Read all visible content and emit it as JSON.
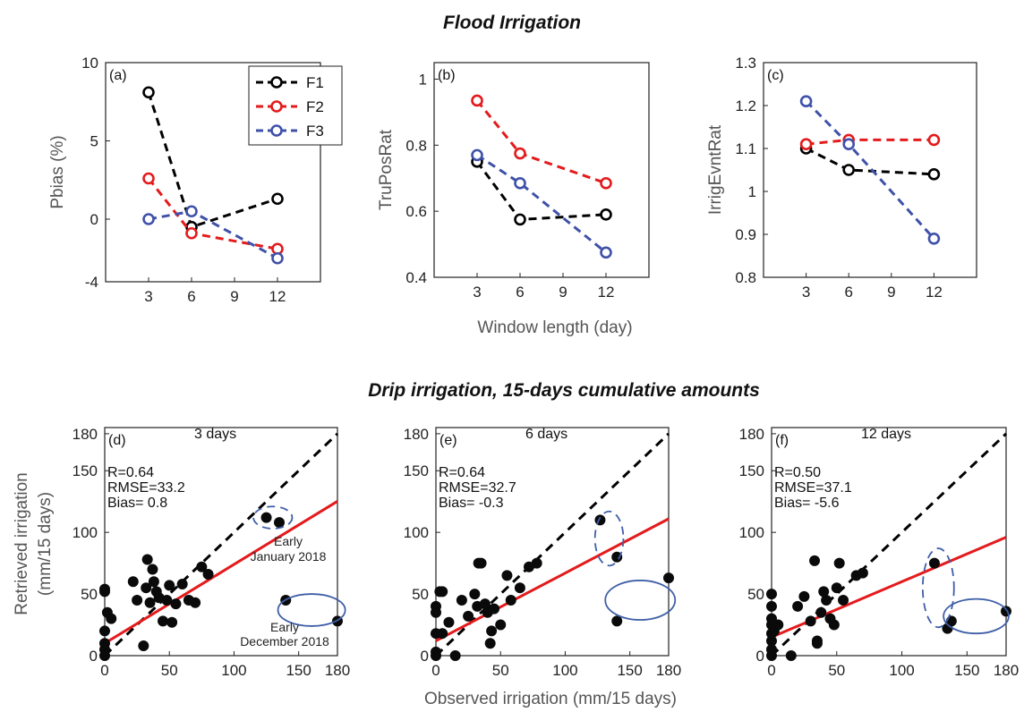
{
  "titles": {
    "top": "Flood Irrigation",
    "bottom": "Drip irrigation, 15-days cumulative amounts"
  },
  "shared_labels": {
    "top_xlabel": "Window length (day)",
    "bottom_xlabel": "Observed irrigation (mm/15 days)",
    "bottom_ylabel_line1": "Retrieved irrigation",
    "bottom_ylabel_line2": "(mm/15 days)"
  },
  "legend": {
    "entries": [
      {
        "name": "F1",
        "color": "#000000"
      },
      {
        "name": "F2",
        "color": "#e41a1c"
      },
      {
        "name": "F3",
        "color": "#3f51a8"
      }
    ]
  },
  "annotations": {
    "d_january_line1": "Early",
    "d_january_line2": "January 2018",
    "d_december_line1": "Early",
    "d_december_line2": "December 2018"
  },
  "chart_data": [
    {
      "type": "line",
      "panel_label": "(a)",
      "ylabel": "Pbias (%)",
      "x": [
        3,
        6,
        12
      ],
      "xticks": [
        3,
        6,
        9,
        12
      ],
      "xlim": [
        0,
        15
      ],
      "ylim": [
        -4,
        10
      ],
      "yticks": [
        -4,
        0,
        5,
        10
      ],
      "series": [
        {
          "name": "F1",
          "values": [
            8.1,
            -0.5,
            1.3
          ]
        },
        {
          "name": "F2",
          "values": [
            2.6,
            -0.9,
            -1.9
          ]
        },
        {
          "name": "F3",
          "values": [
            0.0,
            0.5,
            -2.5
          ]
        }
      ]
    },
    {
      "type": "line",
      "panel_label": "(b)",
      "ylabel": "TruPosRat",
      "x": [
        3,
        6,
        12
      ],
      "xticks": [
        3,
        6,
        9,
        12
      ],
      "xlim": [
        0,
        15
      ],
      "ylim": [
        0.4,
        1.05
      ],
      "yticks": [
        0.4,
        0.6,
        0.8,
        1.0
      ],
      "ytick_labels": [
        "0.4",
        "0.6",
        "0.8",
        "1"
      ],
      "series": [
        {
          "name": "F1",
          "values": [
            0.75,
            0.575,
            0.59
          ]
        },
        {
          "name": "F2",
          "values": [
            0.935,
            0.775,
            0.685
          ]
        },
        {
          "name": "F3",
          "values": [
            0.77,
            0.685,
            0.475
          ]
        }
      ]
    },
    {
      "type": "line",
      "panel_label": "(c)",
      "ylabel": "IrrigEvntRat",
      "x": [
        3,
        6,
        12
      ],
      "xticks": [
        3,
        6,
        9,
        12
      ],
      "xlim": [
        0,
        15
      ],
      "ylim": [
        0.8,
        1.3
      ],
      "yticks": [
        0.8,
        0.9,
        1.0,
        1.1,
        1.2,
        1.3
      ],
      "ytick_labels": [
        "0.8",
        "0.9",
        "1",
        "1.1",
        "1.2",
        "1.3"
      ],
      "series": [
        {
          "name": "F1",
          "values": [
            1.1,
            1.05,
            1.04
          ]
        },
        {
          "name": "F2",
          "values": [
            1.11,
            1.12,
            1.12
          ]
        },
        {
          "name": "F3",
          "values": [
            1.21,
            1.11,
            0.89
          ]
        }
      ]
    },
    {
      "type": "scatter",
      "panel_label": "(d)",
      "subtitle": "3 days",
      "stats": [
        "R=0.64",
        "RMSE=33.2",
        "Bias= 0.8"
      ],
      "xlim": [
        0,
        180
      ],
      "ylim": [
        0,
        185
      ],
      "xticks": [
        0,
        50,
        100,
        150,
        180
      ],
      "yticks": [
        0,
        50,
        100,
        150,
        180
      ],
      "fit": {
        "intercept": 10,
        "slope": 0.64
      },
      "points": [
        [
          0,
          0
        ],
        [
          0,
          5
        ],
        [
          0,
          10
        ],
        [
          0,
          20
        ],
        [
          0,
          52
        ],
        [
          0,
          54
        ],
        [
          2,
          35
        ],
        [
          5,
          30
        ],
        [
          22,
          60
        ],
        [
          25,
          45
        ],
        [
          30,
          8
        ],
        [
          32,
          55
        ],
        [
          33,
          78
        ],
        [
          35,
          43
        ],
        [
          37,
          70
        ],
        [
          38,
          60
        ],
        [
          40,
          52
        ],
        [
          42,
          47
        ],
        [
          45,
          28
        ],
        [
          48,
          45
        ],
        [
          50,
          57
        ],
        [
          52,
          27
        ],
        [
          55,
          42
        ],
        [
          60,
          58
        ],
        [
          65,
          45
        ],
        [
          70,
          43
        ],
        [
          75,
          72
        ],
        [
          80,
          66
        ],
        [
          125,
          112
        ],
        [
          135,
          108
        ],
        [
          140,
          45
        ],
        [
          180,
          28
        ]
      ],
      "ellipses": [
        {
          "cx": 130,
          "cy": 112,
          "rx": 15,
          "ry": 9,
          "style": "dashed"
        },
        {
          "cx": 160,
          "cy": 37,
          "rx": 26,
          "ry": 13,
          "style": "solid"
        }
      ]
    },
    {
      "type": "scatter",
      "panel_label": "(e)",
      "subtitle": "6 days",
      "stats": [
        "R=0.64",
        "RMSE=32.7",
        "Bias= -0.3"
      ],
      "xlim": [
        0,
        180
      ],
      "ylim": [
        0,
        185
      ],
      "xticks": [
        0,
        50,
        100,
        150,
        180
      ],
      "yticks": [
        0,
        50,
        100,
        150,
        180
      ],
      "fit": {
        "intercept": 12,
        "slope": 0.55
      },
      "points": [
        [
          0,
          0
        ],
        [
          0,
          3
        ],
        [
          0,
          18
        ],
        [
          0,
          35
        ],
        [
          0,
          40
        ],
        [
          3,
          52
        ],
        [
          5,
          52
        ],
        [
          5,
          18
        ],
        [
          10,
          27
        ],
        [
          15,
          0
        ],
        [
          20,
          45
        ],
        [
          25,
          32
        ],
        [
          30,
          50
        ],
        [
          32,
          40
        ],
        [
          33,
          75
        ],
        [
          35,
          75
        ],
        [
          38,
          42
        ],
        [
          40,
          35
        ],
        [
          42,
          10
        ],
        [
          43,
          20
        ],
        [
          45,
          38
        ],
        [
          50,
          25
        ],
        [
          55,
          65
        ],
        [
          58,
          45
        ],
        [
          65,
          55
        ],
        [
          72,
          72
        ],
        [
          78,
          75
        ],
        [
          127,
          110
        ],
        [
          140,
          80
        ],
        [
          140,
          28
        ],
        [
          180,
          63
        ]
      ],
      "ellipses": [
        {
          "cx": 134,
          "cy": 95,
          "rx": 11,
          "ry": 22,
          "style": "dashed"
        },
        {
          "cx": 158,
          "cy": 45,
          "rx": 27,
          "ry": 16,
          "style": "solid"
        }
      ]
    },
    {
      "type": "scatter",
      "panel_label": "(f)",
      "subtitle": "12 days",
      "stats": [
        "R=0.50",
        "RMSE=37.1",
        "Bias= -5.6"
      ],
      "xlim": [
        0,
        180
      ],
      "ylim": [
        0,
        185
      ],
      "xticks": [
        0,
        50,
        100,
        150,
        180
      ],
      "yticks": [
        0,
        50,
        100,
        150,
        180
      ],
      "fit": {
        "intercept": 15,
        "slope": 0.45
      },
      "points": [
        [
          0,
          0
        ],
        [
          0,
          5
        ],
        [
          0,
          12
        ],
        [
          0,
          18
        ],
        [
          0,
          25
        ],
        [
          0,
          30
        ],
        [
          0,
          40
        ],
        [
          0,
          50
        ],
        [
          2,
          20
        ],
        [
          5,
          25
        ],
        [
          15,
          0
        ],
        [
          20,
          40
        ],
        [
          25,
          48
        ],
        [
          30,
          28
        ],
        [
          33,
          77
        ],
        [
          35,
          12
        ],
        [
          35,
          10
        ],
        [
          38,
          35
        ],
        [
          40,
          52
        ],
        [
          42,
          45
        ],
        [
          45,
          30
        ],
        [
          48,
          25
        ],
        [
          50,
          55
        ],
        [
          52,
          75
        ],
        [
          55,
          45
        ],
        [
          65,
          65
        ],
        [
          70,
          67
        ],
        [
          125,
          75
        ],
        [
          135,
          22
        ],
        [
          138,
          28
        ],
        [
          180,
          36
        ]
      ],
      "ellipses": [
        {
          "cx": 128,
          "cy": 55,
          "rx": 12,
          "ry": 32,
          "style": "dashed"
        },
        {
          "cx": 157,
          "cy": 32,
          "rx": 25,
          "ry": 14,
          "style": "solid"
        }
      ]
    }
  ]
}
